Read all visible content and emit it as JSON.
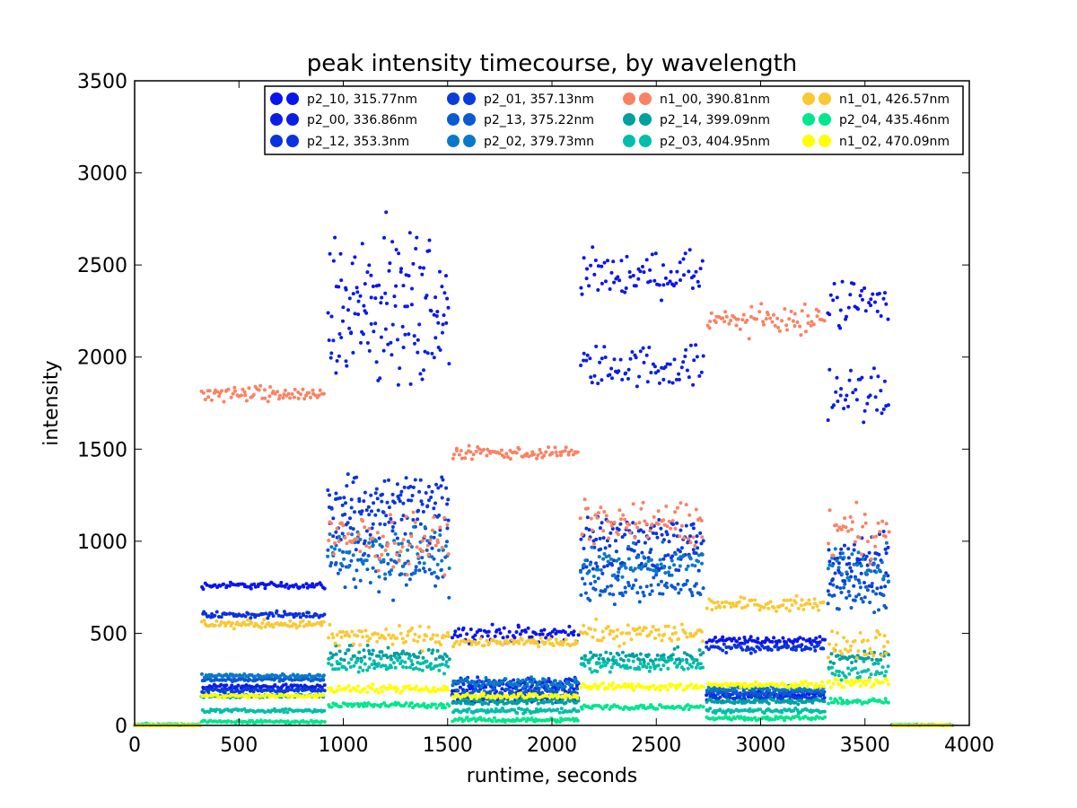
{
  "chart_data": {
    "type": "scatter",
    "title": "peak intensity timecourse, by wavelength",
    "xlabel": "runtime, seconds",
    "ylabel": "intensity",
    "xlim": [
      0,
      4000
    ],
    "ylim": [
      0,
      3500
    ],
    "xticks": [
      0,
      500,
      1000,
      1500,
      2000,
      2500,
      3000,
      3500,
      4000
    ],
    "yticks": [
      0,
      500,
      1000,
      1500,
      2000,
      2500,
      3000,
      3500
    ],
    "grid": false,
    "legend_position": "top-right",
    "segments": [
      {
        "start": 0,
        "end": 310
      },
      {
        "start": 320,
        "end": 910
      },
      {
        "start": 925,
        "end": 1505
      },
      {
        "start": 1520,
        "end": 2120
      },
      {
        "start": 2135,
        "end": 2725
      },
      {
        "start": 2740,
        "end": 3305
      },
      {
        "start": 3320,
        "end": 3615
      },
      {
        "start": 3630,
        "end": 3910
      }
    ],
    "series": [
      {
        "name": "p2_10, 315.77nm",
        "color": "#0a14f0",
        "levels": [
          0,
          760,
          2400,
          500,
          2450,
          460,
          2300,
          0
        ],
        "noise": [
          4,
          12,
          200,
          30,
          80,
          15,
          100,
          3
        ]
      },
      {
        "name": "p2_00, 336.86nm",
        "color": "#0a1ee6",
        "levels": [
          0,
          210,
          2050,
          200,
          1950,
          170,
          1800,
          0
        ],
        "noise": [
          3,
          8,
          200,
          25,
          80,
          12,
          120,
          3
        ]
      },
      {
        "name": "p2_12, 353.3nm",
        "color": "#0a32e0",
        "levels": [
          0,
          600,
          1250,
          230,
          1050,
          420,
          950,
          0
        ],
        "noise": [
          4,
          12,
          90,
          25,
          60,
          15,
          80,
          3
        ]
      },
      {
        "name": "p2_01, 357.13nm",
        "color": "#0a3cdc",
        "levels": [
          0,
          190,
          1100,
          150,
          900,
          150,
          800,
          0
        ],
        "noise": [
          3,
          8,
          120,
          20,
          60,
          12,
          80,
          3
        ]
      },
      {
        "name": "p2_13, 375.22nm",
        "color": "#0a5ad2",
        "levels": [
          0,
          250,
          850,
          180,
          750,
          180,
          700,
          0
        ],
        "noise": [
          3,
          8,
          90,
          20,
          60,
          12,
          60,
          3
        ]
      },
      {
        "name": "p2_02, 379.73mn",
        "color": "#0a78c8",
        "levels": [
          0,
          270,
          950,
          230,
          880,
          200,
          870,
          0
        ],
        "noise": [
          3,
          8,
          100,
          20,
          60,
          12,
          80,
          3
        ]
      },
      {
        "name": "n1_00, 390.81nm",
        "color": "#fa8264",
        "levels": [
          0,
          1800,
          1000,
          1480,
          1100,
          2200,
          1050,
          0
        ],
        "noise": [
          3,
          30,
          100,
          25,
          80,
          50,
          100,
          3
        ]
      },
      {
        "name": "p2_14, 399.09nm",
        "color": "#00a0a0",
        "levels": [
          0,
          160,
          380,
          130,
          370,
          130,
          370,
          0
        ],
        "noise": [
          3,
          6,
          35,
          12,
          30,
          10,
          30,
          3
        ]
      },
      {
        "name": "p2_03, 404.95nm",
        "color": "#00beaa",
        "levels": [
          0,
          80,
          330,
          80,
          330,
          80,
          300,
          0
        ],
        "noise": [
          3,
          6,
          30,
          10,
          25,
          8,
          30,
          3
        ]
      },
      {
        "name": "n1_01, 426.57nm",
        "color": "#fac832",
        "levels": [
          0,
          550,
          480,
          450,
          500,
          660,
          450,
          0
        ],
        "noise": [
          3,
          15,
          40,
          15,
          40,
          25,
          60,
          3
        ]
      },
      {
        "name": "p2_04, 435.46nm",
        "color": "#00e68c",
        "levels": [
          5,
          20,
          110,
          30,
          100,
          40,
          130,
          2
        ],
        "noise": [
          3,
          5,
          10,
          8,
          10,
          8,
          10,
          2
        ]
      },
      {
        "name": "n1_02, 470.09nm",
        "color": "#ffff00",
        "levels": [
          0,
          160,
          200,
          160,
          210,
          220,
          230,
          0
        ],
        "noise": [
          3,
          6,
          15,
          10,
          15,
          10,
          15,
          3
        ]
      }
    ]
  }
}
